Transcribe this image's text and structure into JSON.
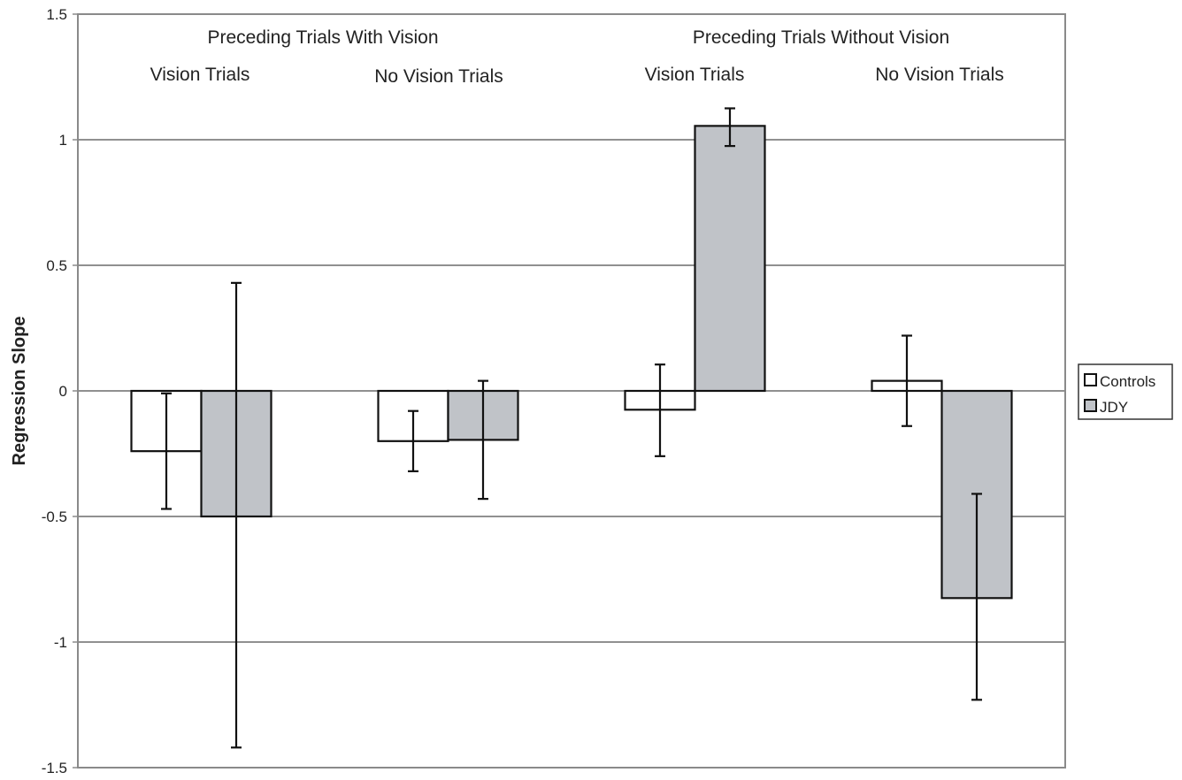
{
  "chart_data": {
    "type": "bar",
    "title": "",
    "xlabel": "",
    "ylabel": "Regression Slope",
    "ylim": [
      -1.5,
      1.5
    ],
    "yticks": [
      "1.5",
      "1",
      "0.5",
      "0",
      "-0.5",
      "-1",
      "-1.5"
    ],
    "ytick_values": [
      1.5,
      1,
      0.5,
      0,
      -0.5,
      -1,
      -1.5
    ],
    "grid": true,
    "legend_position": "right",
    "group_headers": [
      "Preceding Trials With Vision",
      "Preceding Trials Without Vision"
    ],
    "categories": [
      "Vision Trials",
      "No Vision Trials",
      "Vision Trials",
      "No Vision Trials"
    ],
    "series": [
      {
        "name": "Controls",
        "color": "#ffffff",
        "values": [
          -0.24,
          -0.2,
          -0.075,
          0.04
        ],
        "error_low": [
          -0.47,
          -0.32,
          -0.26,
          -0.14
        ],
        "error_high": [
          -0.01,
          -0.08,
          0.105,
          0.22
        ]
      },
      {
        "name": "JDY",
        "color": "#c0c3c8",
        "values": [
          -0.5,
          -0.195,
          1.055,
          -0.825
        ],
        "error_low": [
          -1.42,
          -0.43,
          0.975,
          -1.23
        ],
        "error_high": [
          0.43,
          0.04,
          1.125,
          -0.41
        ]
      }
    ]
  }
}
